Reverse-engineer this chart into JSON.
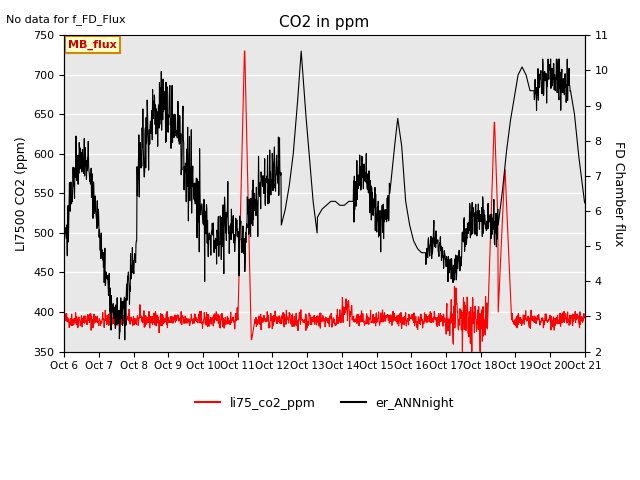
{
  "title": "CO2 in ppm",
  "top_left_text": "No data for f_FD_Flux",
  "legend_box_text": "MB_flux",
  "ylabel_left": "LI7500 CO2 (ppm)",
  "ylabel_right": "FD Chamber flux",
  "ylim_left": [
    350,
    750
  ],
  "ylim_right": [
    2.0,
    11.0
  ],
  "yticks_left": [
    350,
    400,
    450,
    500,
    550,
    600,
    650,
    700,
    750
  ],
  "yticks_right": [
    2.0,
    3.0,
    4.0,
    5.0,
    6.0,
    7.0,
    8.0,
    9.0,
    10.0,
    11.0
  ],
  "xtick_labels": [
    "Oct 6",
    "Oct 7",
    "Oct 8",
    "Oct 9",
    "Oct 10",
    "Oct 11",
    "Oct 12",
    "Oct 13",
    "Oct 14",
    "Oct 15",
    "Oct 16",
    "Oct 17",
    "Oct 18",
    "Oct 19",
    "Oct 20",
    "Oct 21"
  ],
  "bg_color": "#e8e8e8",
  "grid_color": "#ffffff",
  "line1_color": "#ff0000",
  "line2_color": "#000000",
  "legend1_label": "li75_co2_ppm",
  "legend2_label": "er_ANNnight"
}
